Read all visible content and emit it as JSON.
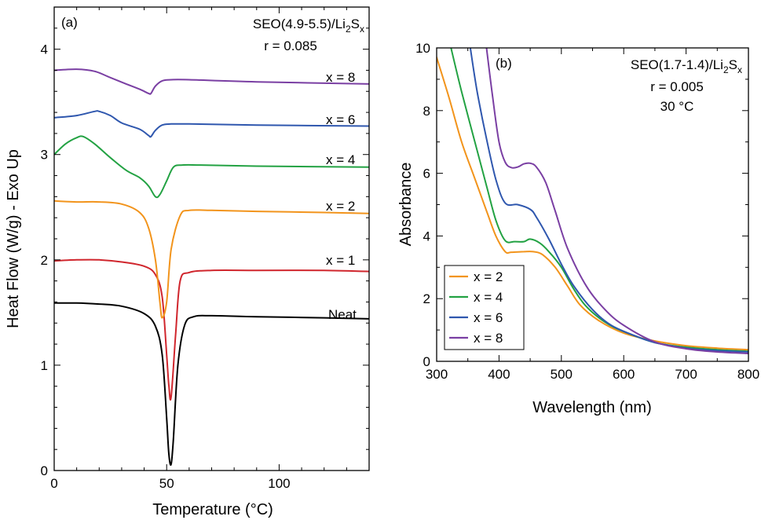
{
  "chart_data": [
    {
      "panel_label": "(a)",
      "type": "line",
      "annotation": {
        "line1_prefix": "SEO(4.9-5.5)/Li",
        "line1_sub1": "2",
        "line1_mid": "S",
        "line1_sub2": "x",
        "line2": "r = 0.085"
      },
      "xlabel": "Temperature (°C)",
      "ylabel": "Heat Flow (W/g) - Exo Up",
      "xlim": [
        0,
        140
      ],
      "ylim": [
        0,
        4.4
      ],
      "x_ticks": [
        "0",
        "50",
        "100"
      ],
      "y_ticks": [
        "0",
        "1",
        "2",
        "3",
        "4"
      ],
      "grid": false,
      "series": [
        {
          "name": "Neat",
          "color": "#000000",
          "x": [
            0,
            10,
            20,
            30,
            40,
            45,
            48,
            50,
            51,
            52,
            53,
            55,
            58,
            62,
            70,
            90,
            120,
            140
          ],
          "y": [
            1.59,
            1.59,
            1.58,
            1.56,
            1.49,
            1.37,
            1.1,
            0.5,
            0.15,
            0.06,
            0.3,
            1.0,
            1.38,
            1.46,
            1.47,
            1.46,
            1.45,
            1.44
          ]
        },
        {
          "name": "x = 1",
          "color": "#d0262d",
          "x": [
            0,
            10,
            20,
            30,
            40,
            45,
            48,
            50,
            51,
            52,
            54,
            56,
            60,
            70,
            90,
            120,
            140
          ],
          "y": [
            1.99,
            2.0,
            2.0,
            1.98,
            1.94,
            1.86,
            1.65,
            1.1,
            0.8,
            0.7,
            1.3,
            1.8,
            1.88,
            1.9,
            1.9,
            1.9,
            1.89
          ],
          "label": "x = 1"
        },
        {
          "name": "x = 2",
          "color": "#f2941c",
          "x": [
            0,
            10,
            20,
            30,
            38,
            42,
            45,
            47,
            48,
            50,
            52,
            56,
            60,
            70,
            90,
            120,
            140
          ],
          "y": [
            2.56,
            2.55,
            2.55,
            2.53,
            2.45,
            2.3,
            2.0,
            1.6,
            1.45,
            1.6,
            2.1,
            2.42,
            2.47,
            2.47,
            2.46,
            2.45,
            2.44
          ],
          "label": "x = 2"
        },
        {
          "name": "x = 4",
          "color": "#23a243",
          "x": [
            0,
            5,
            10,
            13,
            18,
            25,
            32,
            38,
            42,
            45,
            47,
            50,
            53,
            57,
            65,
            90,
            140
          ],
          "y": [
            3.0,
            3.1,
            3.16,
            3.17,
            3.1,
            2.97,
            2.85,
            2.78,
            2.7,
            2.6,
            2.62,
            2.75,
            2.88,
            2.9,
            2.9,
            2.89,
            2.88
          ],
          "label": "x = 4"
        },
        {
          "name": "x = 6",
          "color": "#2f57ae",
          "x": [
            0,
            10,
            18,
            20,
            25,
            30,
            38,
            42,
            43,
            45,
            48,
            52,
            60,
            90,
            140
          ],
          "y": [
            3.35,
            3.37,
            3.41,
            3.41,
            3.37,
            3.3,
            3.24,
            3.18,
            3.17,
            3.23,
            3.28,
            3.29,
            3.29,
            3.28,
            3.27
          ],
          "label": "x = 6"
        },
        {
          "name": "x = 8",
          "color": "#7a3fa3",
          "x": [
            0,
            10,
            18,
            25,
            32,
            38,
            42,
            43,
            45,
            48,
            52,
            60,
            90,
            140
          ],
          "y": [
            3.8,
            3.81,
            3.79,
            3.73,
            3.67,
            3.62,
            3.58,
            3.58,
            3.65,
            3.7,
            3.71,
            3.71,
            3.69,
            3.67
          ],
          "label": "x = 8"
        }
      ]
    },
    {
      "panel_label": "(b)",
      "type": "line",
      "annotation": {
        "line1_prefix": "SEO(1.7-1.4)/Li",
        "line1_sub1": "2",
        "line1_mid": "S",
        "line1_sub2": "x",
        "line2": "r = 0.005",
        "line3": "30 °C"
      },
      "xlabel": "Wavelength (nm)",
      "ylabel": "Absorbance",
      "xlim": [
        300,
        800
      ],
      "ylim": [
        0,
        10
      ],
      "x_ticks": [
        "300",
        "400",
        "500",
        "600",
        "700",
        "800"
      ],
      "y_ticks": [
        "0",
        "2",
        "4",
        "6",
        "8",
        "10"
      ],
      "grid": false,
      "legend_position": "bottom-left",
      "series": [
        {
          "name": "x = 2",
          "color": "#f2941c",
          "x": [
            300,
            320,
            340,
            360,
            380,
            395,
            410,
            420,
            440,
            455,
            470,
            490,
            510,
            530,
            560,
            600,
            650,
            700,
            750,
            800
          ],
          "y": [
            9.7,
            8.4,
            7.0,
            5.9,
            4.8,
            4.0,
            3.5,
            3.48,
            3.5,
            3.5,
            3.4,
            3.0,
            2.4,
            1.8,
            1.3,
            0.9,
            0.65,
            0.5,
            0.42,
            0.37
          ]
        },
        {
          "name": "x = 4",
          "color": "#23a243",
          "x": [
            323,
            340,
            360,
            380,
            395,
            410,
            425,
            440,
            450,
            465,
            480,
            500,
            520,
            540,
            570,
            600,
            650,
            700,
            750,
            800
          ],
          "y": [
            10,
            8.6,
            7.1,
            5.6,
            4.5,
            3.85,
            3.82,
            3.82,
            3.9,
            3.78,
            3.5,
            3.0,
            2.3,
            1.75,
            1.25,
            0.95,
            0.6,
            0.45,
            0.37,
            0.32
          ]
        },
        {
          "name": "x = 6",
          "color": "#2f57ae",
          "x": [
            354,
            365,
            380,
            395,
            410,
            430,
            450,
            460,
            480,
            500,
            520,
            550,
            580,
            620,
            650,
            700,
            750,
            800
          ],
          "y": [
            10,
            8.6,
            7.1,
            5.8,
            5.05,
            5.0,
            4.85,
            4.6,
            3.9,
            3.1,
            2.4,
            1.65,
            1.15,
            0.8,
            0.6,
            0.42,
            0.34,
            0.3
          ]
        },
        {
          "name": "x = 8",
          "color": "#7a3fa3",
          "x": [
            380,
            390,
            400,
            410,
            420,
            430,
            440,
            450,
            460,
            475,
            490,
            510,
            540,
            570,
            600,
            650,
            700,
            750,
            800
          ],
          "y": [
            10,
            8.4,
            7.0,
            6.35,
            6.18,
            6.2,
            6.3,
            6.32,
            6.2,
            5.7,
            4.8,
            3.6,
            2.4,
            1.65,
            1.15,
            0.62,
            0.4,
            0.3,
            0.25
          ]
        }
      ]
    }
  ]
}
